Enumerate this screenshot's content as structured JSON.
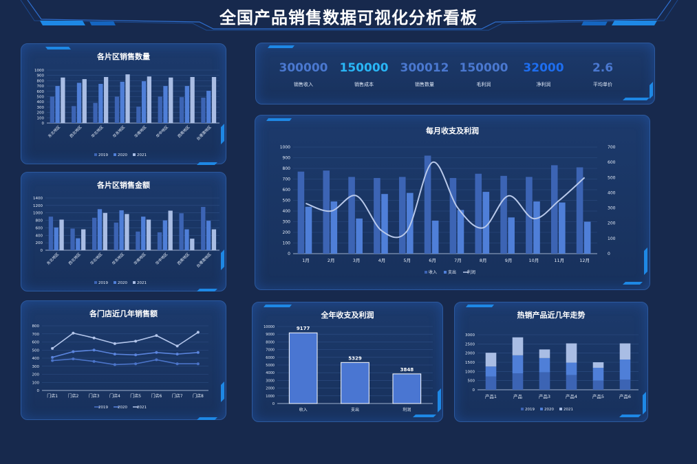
{
  "page_title": "全国产品销售数据可视化分析看板",
  "colors": {
    "dark": "#3c64b4",
    "mid": "#4f7fd8",
    "light": "#a9bde4"
  },
  "kpis": [
    {
      "value": "300000",
      "label": "销售收入",
      "color": "#4a78d0"
    },
    {
      "value": "150000",
      "label": "销售成本",
      "color": "#29b6f6"
    },
    {
      "value": "300012",
      "label": "销售数量",
      "color": "#4a78d0"
    },
    {
      "value": "150000",
      "label": "毛利润",
      "color": "#4a78d0"
    },
    {
      "value": "32000",
      "label": "净利润",
      "color": "#1e6ef0"
    },
    {
      "value": "2.6",
      "label": "平均单价",
      "color": "#4a78d0"
    }
  ],
  "chart_data": [
    {
      "id": "qty",
      "type": "bar",
      "title": "各片区销售数量",
      "categories": [
        "东北地区",
        "西北地区",
        "华北地区",
        "华东地区",
        "华南地区",
        "华中地区",
        "西南地区",
        "台港澳地区"
      ],
      "series": [
        {
          "name": "2019",
          "values": [
            500,
            320,
            380,
            500,
            310,
            500,
            490,
            480
          ]
        },
        {
          "name": "2020",
          "values": [
            700,
            760,
            740,
            780,
            790,
            700,
            700,
            610
          ]
        },
        {
          "name": "2021",
          "values": [
            860,
            830,
            870,
            920,
            880,
            860,
            870,
            870
          ]
        }
      ],
      "ylim": [
        0,
        1000
      ],
      "yticks": [
        0,
        100,
        200,
        300,
        400,
        500,
        600,
        700,
        800,
        900,
        1000
      ]
    },
    {
      "id": "amt",
      "type": "bar",
      "title": "各片区销售金额",
      "categories": [
        "东北地区",
        "西北地区",
        "华北地区",
        "华东地区",
        "华南地区",
        "华中地区",
        "西南地区",
        "台港澳地区"
      ],
      "series": [
        {
          "name": "2019",
          "values": [
            900,
            580,
            870,
            740,
            500,
            480,
            990,
            1160
          ]
        },
        {
          "name": "2020",
          "values": [
            610,
            320,
            1100,
            1070,
            900,
            800,
            560,
            790
          ]
        },
        {
          "name": "2021",
          "values": [
            820,
            560,
            1000,
            970,
            820,
            1060,
            310,
            560
          ]
        }
      ],
      "ylim": [
        0,
        1400
      ],
      "yticks": [
        0,
        200,
        400,
        600,
        800,
        1000,
        1200,
        1400
      ]
    },
    {
      "id": "store",
      "type": "line",
      "title": "各门店近几年销售额",
      "categories": [
        "门店1",
        "门店2",
        "门店3",
        "门店4",
        "门店5",
        "门店6",
        "门店7",
        "门店8"
      ],
      "series": [
        {
          "name": "2019",
          "values": [
            370,
            390,
            360,
            320,
            330,
            380,
            330,
            330
          ]
        },
        {
          "name": "2020",
          "values": [
            410,
            480,
            500,
            450,
            440,
            470,
            450,
            470
          ]
        },
        {
          "name": "2021",
          "values": [
            520,
            710,
            650,
            580,
            610,
            680,
            550,
            720
          ]
        }
      ],
      "ylim": [
        0,
        800
      ],
      "yticks": [
        0,
        100,
        200,
        300,
        400,
        500,
        600,
        700,
        800
      ]
    },
    {
      "id": "monthly",
      "type": "bar",
      "title": "每月收支及利润",
      "categories": [
        "1月",
        "2月",
        "3月",
        "4月",
        "5月",
        "6月",
        "7月",
        "8月",
        "9月",
        "10月",
        "11月",
        "12月"
      ],
      "series": [
        {
          "name": "收入",
          "values": [
            770,
            780,
            720,
            710,
            720,
            920,
            710,
            750,
            730,
            720,
            830,
            810
          ]
        },
        {
          "name": "支出",
          "values": [
            440,
            490,
            330,
            560,
            570,
            310,
            410,
            580,
            340,
            490,
            480,
            300
          ]
        },
        {
          "name": "利润",
          "axis": "right",
          "values": [
            330,
            280,
            380,
            150,
            150,
            600,
            300,
            170,
            380,
            230,
            350,
            500
          ]
        }
      ],
      "ylim": [
        0,
        1000
      ],
      "yticks": [
        0,
        100,
        200,
        300,
        400,
        500,
        600,
        700,
        800,
        900,
        1000
      ],
      "y2lim": [
        0,
        700
      ],
      "y2ticks": [
        0,
        100,
        200,
        300,
        400,
        500,
        600,
        700
      ]
    },
    {
      "id": "annual",
      "type": "bar",
      "title": "全年收支及利润",
      "categories": [
        "收入",
        "支出",
        "利润"
      ],
      "values": [
        9177,
        5329,
        3848
      ],
      "ylim": [
        0,
        10000
      ],
      "yticks": [
        0,
        1000,
        2000,
        3000,
        4000,
        5000,
        6000,
        7000,
        8000,
        9000,
        10000
      ]
    },
    {
      "id": "hot",
      "type": "bar",
      "stacked": true,
      "title": "热销产品近几年走势",
      "categories": [
        "产品1",
        "产品",
        "产品3",
        "产品4",
        "产品5",
        "产品6"
      ],
      "series": [
        {
          "name": "2019",
          "values": [
            720,
            900,
            950,
            800,
            500,
            550
          ]
        },
        {
          "name": "2020",
          "values": [
            550,
            980,
            780,
            680,
            700,
            1100
          ]
        },
        {
          "name": "2021",
          "values": [
            750,
            980,
            470,
            1050,
            300,
            880
          ]
        }
      ],
      "ylim": [
        0,
        3000
      ],
      "yticks": [
        0,
        500,
        1000,
        1500,
        2000,
        2500,
        3000
      ]
    }
  ]
}
